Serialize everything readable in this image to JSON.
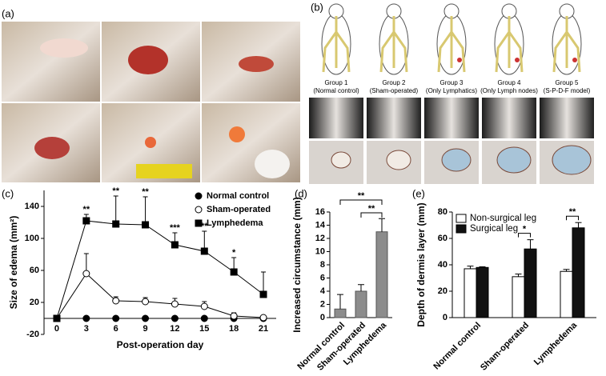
{
  "panel_labels": [
    "(a)",
    "(b)",
    "(c)",
    "(d)",
    "(e)"
  ],
  "groups": [
    {
      "name": "Group 1",
      "note": "(Normal control)"
    },
    {
      "name": "Group 2",
      "note": "(Sham-operated)"
    },
    {
      "name": "Group 3",
      "note": "(Only Lymphatics)"
    },
    {
      "name": "Group 4",
      "note": "(Only Lymph nodes)"
    },
    {
      "name": "Group 5",
      "note": "(S-P-D-F model)"
    }
  ],
  "chart_data": [
    {
      "type": "line",
      "x_label": "Post-operation day",
      "y_label": "Size of edema (mm²)",
      "x": [
        0,
        3,
        6,
        9,
        12,
        15,
        18,
        21
      ],
      "xlim": [
        -1.3,
        22.3
      ],
      "xticks": [
        0,
        3,
        6,
        9,
        12,
        15,
        18,
        21
      ],
      "ylim": [
        -20,
        160
      ],
      "yticks": [
        -20,
        20,
        60,
        100,
        140
      ],
      "legend": "top-right",
      "series": [
        {
          "name": "Normal control",
          "marker": "filled-circle",
          "color": "#000000",
          "values": [
            0,
            0,
            0,
            0,
            0,
            0,
            0,
            0
          ],
          "errors": [
            0,
            1,
            1,
            1,
            1,
            1,
            1,
            1
          ]
        },
        {
          "name": "Sham-operated",
          "marker": "open-circle",
          "color": "#000000",
          "values": [
            0,
            56,
            22,
            21,
            18,
            15,
            3,
            1
          ],
          "errors": [
            0,
            25,
            5,
            5,
            7,
            6,
            4,
            2
          ]
        },
        {
          "name": "Lymphedema",
          "marker": "filled-square",
          "color": "#000000",
          "values": [
            0,
            122,
            118,
            117,
            92,
            84,
            58,
            30
          ],
          "errors": [
            0,
            8,
            35,
            35,
            15,
            25,
            18,
            28
          ]
        }
      ],
      "annotations": [
        {
          "x": 3,
          "label": "**"
        },
        {
          "x": 6,
          "label": "**"
        },
        {
          "x": 9,
          "label": "**"
        },
        {
          "x": 12,
          "label": "***"
        },
        {
          "x": 15,
          "label": "**"
        },
        {
          "x": 18,
          "label": "*"
        }
      ]
    },
    {
      "type": "bar",
      "y_label": "Increased circumstance (mm)",
      "categories": [
        "Normal control",
        "Sham-operated",
        "Lymphedema"
      ],
      "values": [
        1.3,
        4.0,
        13
      ],
      "errors": [
        2.2,
        1.0,
        2.0
      ],
      "color": "#8c8c8c",
      "ylim": [
        0,
        16
      ],
      "yticks": [
        0,
        2,
        4,
        6,
        8,
        10,
        12,
        14,
        16
      ],
      "annotations": [
        {
          "between": [
            "Normal control",
            "Lymphedema"
          ],
          "label": "**"
        },
        {
          "between": [
            "Sham-operated",
            "Lymphedema"
          ],
          "label": "**"
        }
      ]
    },
    {
      "type": "grouped-bar",
      "y_label": "Depth of dermis layer (mm)",
      "categories": [
        "Normal control",
        "Sham-operated",
        "Lymphedema"
      ],
      "ylim": [
        0,
        80
      ],
      "yticks": [
        0,
        20,
        40,
        60,
        80
      ],
      "legend": "top-left",
      "series": [
        {
          "name": "Non-surgical leg",
          "color": "#ffffff",
          "values": [
            37,
            31,
            35
          ],
          "errors": [
            2,
            2,
            1.5
          ]
        },
        {
          "name": "Surgical leg",
          "color": "#111111",
          "values": [
            38,
            52,
            68
          ],
          "errors": [
            0.5,
            7,
            4
          ]
        }
      ],
      "annotations": [
        {
          "category": "Sham-operated",
          "label": "*"
        },
        {
          "category": "Lymphedema",
          "label": "**"
        }
      ]
    }
  ]
}
